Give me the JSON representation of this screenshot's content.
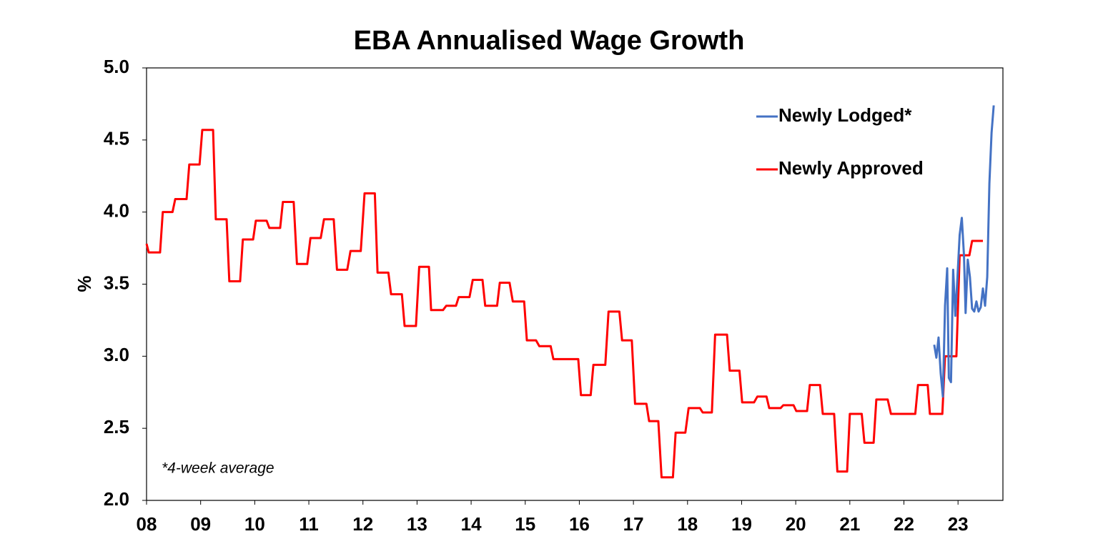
{
  "chart_data": {
    "type": "line",
    "title": "EBA Annualised Wage Growth",
    "ylabel": "%",
    "annotation": "*4-week average",
    "xlim": [
      2008,
      2023.83
    ],
    "xticks": [
      {
        "value": 2008,
        "label": "08"
      },
      {
        "value": 2009,
        "label": "09"
      },
      {
        "value": 2010,
        "label": "10"
      },
      {
        "value": 2011,
        "label": "11"
      },
      {
        "value": 2012,
        "label": "12"
      },
      {
        "value": 2013,
        "label": "13"
      },
      {
        "value": 2014,
        "label": "14"
      },
      {
        "value": 2015,
        "label": "15"
      },
      {
        "value": 2016,
        "label": "16"
      },
      {
        "value": 2017,
        "label": "17"
      },
      {
        "value": 2018,
        "label": "18"
      },
      {
        "value": 2019,
        "label": "19"
      },
      {
        "value": 2020,
        "label": "20"
      },
      {
        "value": 2021,
        "label": "21"
      },
      {
        "value": 2022,
        "label": "22"
      },
      {
        "value": 2023,
        "label": "23"
      }
    ],
    "ylim": [
      2,
      5
    ],
    "yticks": [
      {
        "value": 2,
        "label": "2.0"
      },
      2.5,
      {
        "value": 3,
        "label": "3.0"
      },
      3.5,
      {
        "value": 4,
        "label": "4.0"
      },
      4.5,
      {
        "value": 5,
        "label": "5.0"
      }
    ],
    "legend": "top-right",
    "series": [
      {
        "name": "Newly Lodged*",
        "color": "#4472c4",
        "x": [
          2022.56,
          2022.6,
          2022.64,
          2022.68,
          2022.72,
          2022.76,
          2022.8,
          2022.83,
          2022.87,
          2022.91,
          2022.95,
          2022.99,
          2023.03,
          2023.07,
          2023.11,
          2023.14,
          2023.18,
          2023.22,
          2023.26,
          2023.3,
          2023.34,
          2023.38,
          2023.42,
          2023.46,
          2023.5,
          2023.54,
          2023.58,
          2023.62,
          2023.66
        ],
        "values": [
          3.08,
          2.99,
          3.13,
          2.88,
          2.72,
          3.35,
          3.61,
          2.85,
          2.82,
          3.6,
          3.28,
          3.55,
          3.84,
          3.96,
          3.7,
          3.3,
          3.67,
          3.55,
          3.33,
          3.31,
          3.38,
          3.31,
          3.34,
          3.47,
          3.35,
          3.55,
          4.2,
          4.55,
          4.74
        ]
      },
      {
        "name": "Newly Approved",
        "color": "#ff0000",
        "x": [
          2008.0,
          2008.04,
          2008.25,
          2008.3,
          2008.48,
          2008.53,
          2008.74,
          2008.79,
          2008.98,
          2009.03,
          2009.23,
          2009.28,
          2009.48,
          2009.53,
          2009.73,
          2009.78,
          2009.97,
          2010.02,
          2010.22,
          2010.27,
          2010.47,
          2010.52,
          2010.72,
          2010.78,
          2010.97,
          2011.03,
          2011.22,
          2011.28,
          2011.46,
          2011.52,
          2011.71,
          2011.77,
          2011.96,
          2012.03,
          2012.22,
          2012.27,
          2012.47,
          2012.52,
          2012.72,
          2012.77,
          2012.98,
          2013.04,
          2013.22,
          2013.26,
          2013.48,
          2013.54,
          2013.72,
          2013.77,
          2013.97,
          2014.03,
          2014.21,
          2014.26,
          2014.48,
          2014.53,
          2014.71,
          2014.77,
          2014.98,
          2015.03,
          2015.2,
          2015.26,
          2015.47,
          2015.52,
          2015.77,
          2015.98,
          2016.03,
          2016.21,
          2016.26,
          2016.48,
          2016.54,
          2016.74,
          2016.79,
          2016.97,
          2017.03,
          2017.24,
          2017.29,
          2017.46,
          2017.52,
          2017.73,
          2017.78,
          2017.96,
          2018.02,
          2018.23,
          2018.28,
          2018.45,
          2018.51,
          2018.73,
          2018.78,
          2018.96,
          2019.01,
          2019.23,
          2019.29,
          2019.46,
          2019.51,
          2019.72,
          2019.77,
          2019.96,
          2020.01,
          2020.21,
          2020.26,
          2020.45,
          2020.5,
          2020.71,
          2020.77,
          2020.95,
          2021.0,
          2021.22,
          2021.27,
          2021.44,
          2021.49,
          2021.7,
          2021.76,
          2022.21,
          2022.26,
          2022.44,
          2022.48,
          2022.71,
          2022.76,
          2022.97,
          2023.03,
          2023.21,
          2023.26,
          2023.46
        ],
        "values": [
          3.78,
          3.72,
          3.72,
          4.0,
          4.0,
          4.09,
          4.09,
          4.33,
          4.33,
          4.57,
          4.57,
          3.95,
          3.95,
          3.52,
          3.52,
          3.81,
          3.81,
          3.94,
          3.94,
          3.89,
          3.89,
          4.07,
          4.07,
          3.64,
          3.64,
          3.82,
          3.82,
          3.95,
          3.95,
          3.6,
          3.6,
          3.73,
          3.73,
          4.13,
          4.13,
          3.58,
          3.58,
          3.43,
          3.43,
          3.21,
          3.21,
          3.62,
          3.62,
          3.32,
          3.32,
          3.35,
          3.35,
          3.41,
          3.41,
          3.53,
          3.53,
          3.35,
          3.35,
          3.51,
          3.51,
          3.38,
          3.38,
          3.11,
          3.11,
          3.07,
          3.07,
          2.98,
          2.98,
          2.98,
          2.73,
          2.73,
          2.94,
          2.94,
          3.31,
          3.31,
          3.11,
          3.11,
          2.67,
          2.67,
          2.55,
          2.55,
          2.16,
          2.16,
          2.47,
          2.47,
          2.64,
          2.64,
          2.61,
          2.61,
          3.15,
          3.15,
          2.9,
          2.9,
          2.68,
          2.68,
          2.72,
          2.72,
          2.64,
          2.64,
          2.66,
          2.66,
          2.62,
          2.62,
          2.8,
          2.8,
          2.6,
          2.6,
          2.2,
          2.2,
          2.6,
          2.6,
          2.4,
          2.4,
          2.7,
          2.7,
          2.6,
          2.6,
          2.8,
          2.8,
          2.6,
          2.6,
          3.0,
          3.0,
          3.7,
          3.7,
          3.8,
          3.8
        ]
      }
    ]
  }
}
